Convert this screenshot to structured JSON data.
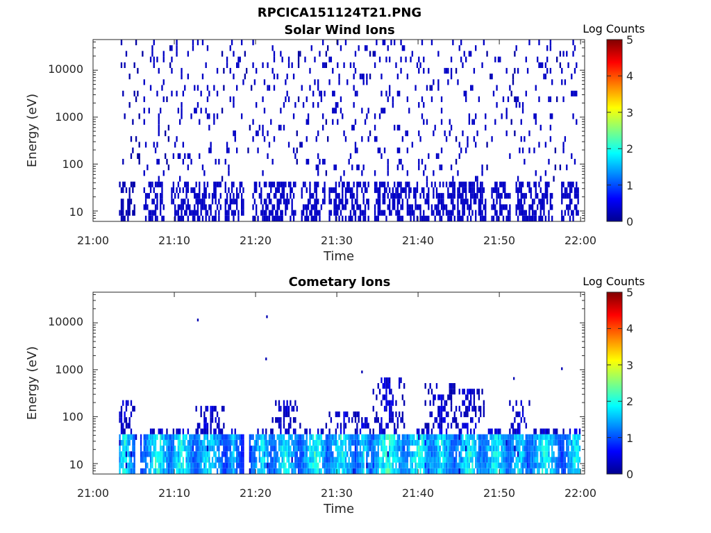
{
  "figure_title": "RPCICA151124T21.PNG",
  "colormap": [
    "#00008f",
    "#0000ff",
    "#0080ff",
    "#00ffff",
    "#80ff80",
    "#ffff00",
    "#ff8000",
    "#ff0000",
    "#800000"
  ],
  "chart_data": [
    {
      "type": "heatmap",
      "title": "Solar Wind Ions",
      "xlabel": "Time",
      "ylabel": "Energy (eV)",
      "x_tick_labels": [
        "21:00",
        "21:10",
        "21:20",
        "21:30",
        "21:40",
        "21:50",
        "22:00"
      ],
      "y_tick_labels": [
        "10",
        "100",
        "1000",
        "10000"
      ],
      "xlim_minutes": [
        0,
        60.5
      ],
      "y_scale": "log",
      "ylim": [
        6,
        45000
      ],
      "colorbar": {
        "title": "Log Counts",
        "range": [
          0,
          5
        ],
        "ticks": [
          "0",
          "1",
          "2",
          "3",
          "4",
          "5"
        ]
      },
      "activity_minutes": [
        3.2,
        59.8
      ],
      "low_energy_bursts": [
        {
          "t": 3.5,
          "w": 0.8,
          "z": 0.2
        },
        {
          "t": 4.6,
          "w": 0.5,
          "z": 0.15
        },
        {
          "t": 7.5,
          "w": 1.3,
          "z": 0.3
        },
        {
          "t": 11.0,
          "w": 1.6,
          "z": 0.3
        },
        {
          "t": 14.2,
          "w": 1.5,
          "z": 0.3
        },
        {
          "t": 17.2,
          "w": 1.2,
          "z": 0.3
        },
        {
          "t": 20.8,
          "w": 1.3,
          "z": 0.3
        },
        {
          "t": 23.5,
          "w": 1.4,
          "z": 0.3
        },
        {
          "t": 27.0,
          "w": 1.5,
          "z": 0.3
        },
        {
          "t": 30.3,
          "w": 1.5,
          "z": 0.3
        },
        {
          "t": 32.8,
          "w": 1.0,
          "z": 0.3
        },
        {
          "t": 36.2,
          "w": 1.8,
          "z": 0.3
        },
        {
          "t": 39.8,
          "w": 1.6,
          "z": 0.3
        },
        {
          "t": 43.0,
          "w": 1.5,
          "z": 0.3
        },
        {
          "t": 46.6,
          "w": 1.8,
          "z": 0.3
        },
        {
          "t": 50.2,
          "w": 1.2,
          "z": 0.3
        },
        {
          "t": 53.0,
          "w": 1.0,
          "z": 0.3
        },
        {
          "t": 55.0,
          "w": 1.6,
          "z": 0.3
        },
        {
          "t": 58.8,
          "w": 1.2,
          "z": 0.3
        }
      ]
    },
    {
      "type": "heatmap",
      "title": "Cometary Ions",
      "xlabel": "Time",
      "ylabel": "Energy (eV)",
      "x_tick_labels": [
        "21:00",
        "21:10",
        "21:20",
        "21:30",
        "21:40",
        "21:50",
        "22:00"
      ],
      "y_tick_labels": [
        "10",
        "100",
        "1000",
        "10000"
      ],
      "xlim_minutes": [
        0,
        60.5
      ],
      "y_scale": "log",
      "ylim": [
        6,
        45000
      ],
      "colorbar": {
        "title": "Log Counts",
        "range": [
          0,
          5
        ],
        "ticks": [
          "0",
          "1",
          "2",
          "3",
          "4",
          "5"
        ]
      },
      "bursts": [
        {
          "t": 3.8,
          "w": 1.4,
          "peak": 2.0,
          "top": 200
        },
        {
          "t": 7.8,
          "w": 2.0,
          "peak": 2.1,
          "top": 60
        },
        {
          "t": 10.8,
          "w": 2.0,
          "peak": 2.0,
          "top": 50
        },
        {
          "t": 14.2,
          "w": 2.2,
          "peak": 1.9,
          "top": 170
        },
        {
          "t": 17.2,
          "w": 1.2,
          "peak": 1.6,
          "top": 50
        },
        {
          "t": 20.6,
          "w": 1.5,
          "peak": 1.9,
          "top": 50
        },
        {
          "t": 23.6,
          "w": 2.0,
          "peak": 2.0,
          "top": 220
        },
        {
          "t": 27.2,
          "w": 2.0,
          "peak": 2.1,
          "top": 50
        },
        {
          "t": 30.5,
          "w": 2.0,
          "peak": 2.0,
          "top": 140
        },
        {
          "t": 33.2,
          "w": 1.2,
          "peak": 1.8,
          "top": 120
        },
        {
          "t": 36.2,
          "w": 2.4,
          "peak": 2.2,
          "top": 600
        },
        {
          "t": 40.0,
          "w": 2.2,
          "peak": 2.1,
          "top": 50
        },
        {
          "t": 42.8,
          "w": 2.0,
          "peak": 1.9,
          "top": 500
        },
        {
          "t": 46.2,
          "w": 2.2,
          "peak": 2.0,
          "top": 450
        },
        {
          "t": 49.5,
          "w": 2.0,
          "peak": 2.0,
          "top": 60
        },
        {
          "t": 52.3,
          "w": 1.4,
          "peak": 1.9,
          "top": 250
        },
        {
          "t": 55.5,
          "w": 2.4,
          "peak": 2.0,
          "top": 50
        },
        {
          "t": 59.2,
          "w": 1.6,
          "peak": 1.9,
          "top": 60
        }
      ],
      "outliers": [
        {
          "t": 12.8,
          "e": 11500
        },
        {
          "t": 21.3,
          "e": 13500
        },
        {
          "t": 21.2,
          "e": 1700
        },
        {
          "t": 33.0,
          "e": 900
        },
        {
          "t": 51.7,
          "e": 650
        },
        {
          "t": 57.6,
          "e": 1050
        }
      ]
    }
  ]
}
